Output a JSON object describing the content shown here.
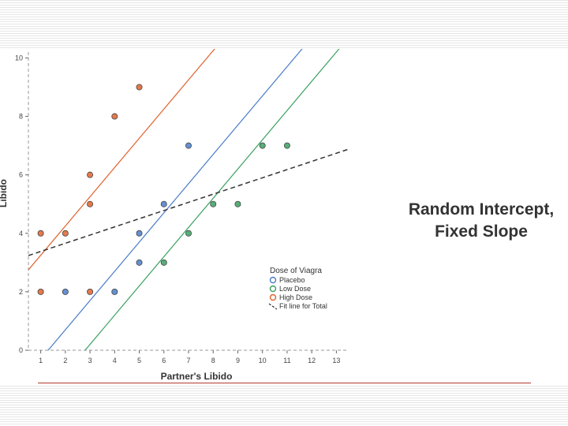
{
  "slide": {
    "title_line1": "Random Intercept,",
    "title_line2": "Fixed Slope"
  },
  "chart_data": {
    "type": "scatter",
    "xlabel": "Partner's Libido",
    "ylabel": "Libido",
    "xlim": [
      0.5,
      13.5
    ],
    "ylim": [
      0,
      10.2
    ],
    "xticks": [
      "1",
      "2",
      "3",
      "4",
      "5",
      "6",
      "7",
      "8",
      "9",
      "10",
      "11",
      "12",
      "13"
    ],
    "yticks": [
      "0",
      "2",
      "4",
      "6",
      "8",
      "10"
    ],
    "legend": {
      "title": "Dose of Viagra",
      "placement": "bottom-right",
      "entries": [
        "Placebo",
        "Low Dose",
        "High Dose",
        "Fit line for Total"
      ]
    },
    "series": [
      {
        "name": "Placebo",
        "color": "#4a7cc9",
        "points": [
          [
            2,
            2
          ],
          [
            4,
            2
          ],
          [
            5,
            3
          ],
          [
            5,
            4
          ],
          [
            6,
            5
          ],
          [
            7,
            7
          ]
        ],
        "fit": {
          "intercept": -1.3,
          "slope": 1.0
        }
      },
      {
        "name": "Low Dose",
        "color": "#3aa060",
        "points": [
          [
            6,
            3
          ],
          [
            7,
            4
          ],
          [
            8,
            5
          ],
          [
            9,
            5
          ],
          [
            10,
            7
          ],
          [
            11,
            7
          ]
        ],
        "fit": {
          "intercept": -2.8,
          "slope": 1.0
        }
      },
      {
        "name": "High Dose",
        "color": "#e0622d",
        "points": [
          [
            1,
            2
          ],
          [
            1,
            4
          ],
          [
            2,
            4
          ],
          [
            3,
            2
          ],
          [
            3,
            5
          ],
          [
            3,
            6
          ],
          [
            4,
            8
          ],
          [
            5,
            9
          ]
        ],
        "fit": {
          "intercept": 2.25,
          "slope": 1.0
        }
      }
    ],
    "total_fit": {
      "name": "Fit line for Total",
      "style": "dashed",
      "color": "#333333",
      "intercept": 3.1,
      "slope": 0.28
    }
  }
}
